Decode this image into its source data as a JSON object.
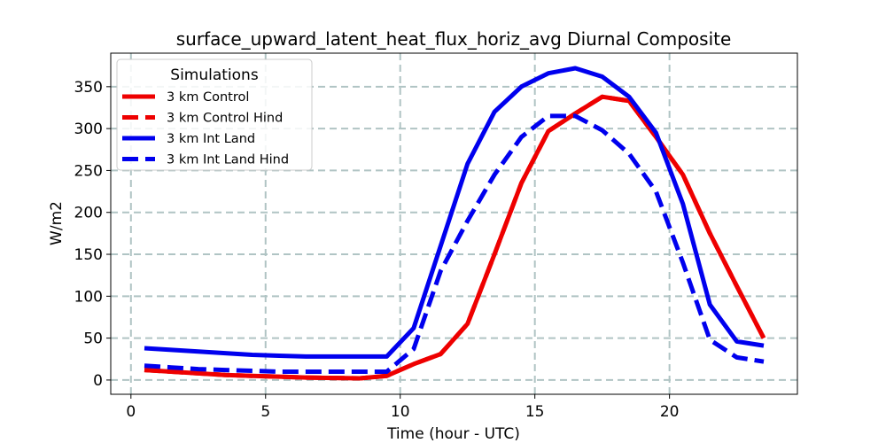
{
  "chart_data": {
    "type": "line",
    "title": "surface_upward_latent_heat_flux_horiz_avg Diurnal Composite",
    "xlabel": "Time (hour - UTC)",
    "ylabel": "W/m2",
    "xlim": [
      -0.75,
      24.75
    ],
    "ylim": [
      -17,
      390
    ],
    "xticks": [
      0,
      5,
      10,
      15,
      20
    ],
    "yticks": [
      0,
      50,
      100,
      150,
      200,
      250,
      300,
      350
    ],
    "grid": true,
    "legend": {
      "title": "Simulations",
      "placement": "upper-left"
    },
    "x": [
      0.5,
      1.5,
      2.5,
      3.5,
      4.5,
      5.5,
      6.5,
      7.5,
      8.5,
      9.5,
      10.5,
      11.5,
      12.5,
      13.5,
      14.5,
      15.5,
      16.5,
      17.5,
      18.5,
      19.5,
      20.5,
      21.5,
      22.5,
      23.5
    ],
    "series": [
      {
        "name": "3 km Control",
        "color": "#ee0000",
        "style": "solid",
        "values": [
          12,
          10,
          8,
          6,
          5,
          4,
          3,
          2.5,
          2,
          5,
          19,
          31,
          67,
          150,
          235,
          297,
          318,
          338,
          333,
          290,
          245,
          175,
          112,
          50
        ]
      },
      {
        "name": "3 km Control Hind",
        "color": "#ee0000",
        "style": "dashed",
        "values": [
          12,
          10,
          8,
          6,
          5,
          4,
          3,
          2.5,
          2,
          5,
          19,
          31,
          67,
          150,
          235,
          297,
          318,
          338,
          333,
          290,
          245,
          175,
          112,
          50
        ]
      },
      {
        "name": "3 km Int Land",
        "color": "#0000ee",
        "style": "solid",
        "values": [
          38,
          36,
          34,
          32,
          30,
          29,
          28,
          28,
          28,
          28,
          62,
          160,
          258,
          320,
          350,
          366,
          372,
          362,
          338,
          295,
          210,
          90,
          46,
          41
        ]
      },
      {
        "name": "3 km Int Land Hind",
        "color": "#0000ee",
        "style": "dashed",
        "values": [
          17,
          15,
          13,
          12,
          11,
          10,
          10,
          10,
          10,
          10,
          37,
          130,
          190,
          245,
          290,
          315,
          315,
          298,
          270,
          225,
          140,
          48,
          27,
          22
        ]
      }
    ]
  }
}
